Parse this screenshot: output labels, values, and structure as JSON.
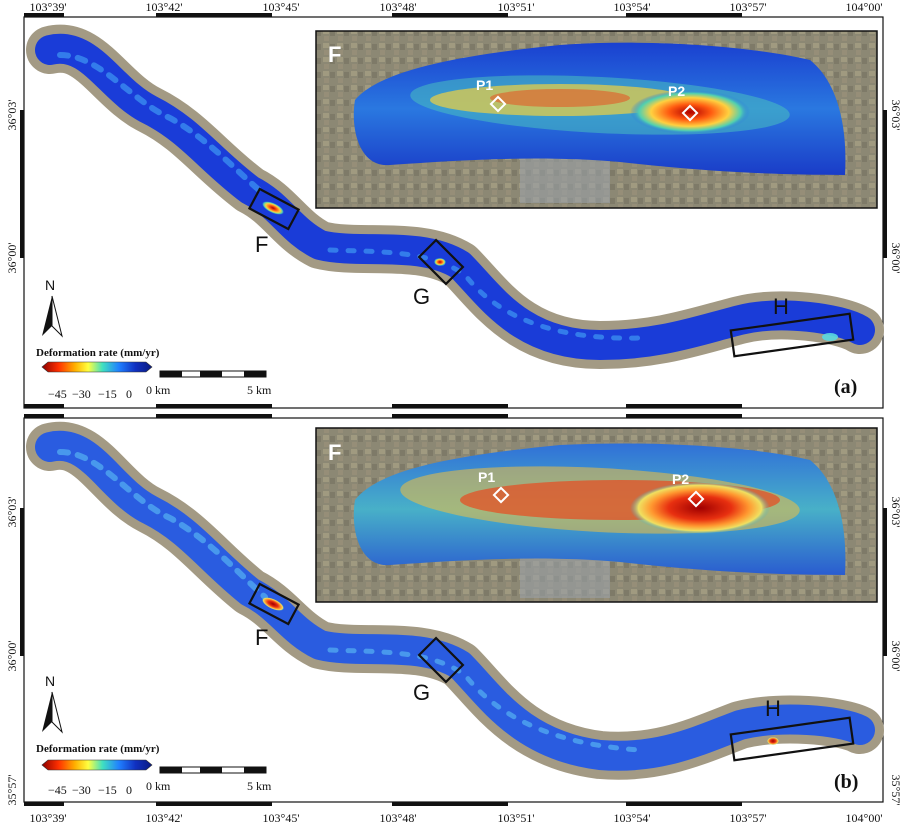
{
  "lon_ticks": [
    "103°39'",
    "103°42'",
    "103°45'",
    "103°48'",
    "103°51'",
    "103°54'",
    "103°57'",
    "104°00'"
  ],
  "panels": [
    {
      "id": "a",
      "panel_label": "(a)",
      "lat_ticks": [
        "36°03'",
        "36°00'"
      ],
      "box_labels": [
        "F",
        "G",
        "H"
      ],
      "inset": {
        "label": "F",
        "points": [
          "P1",
          "P2"
        ]
      },
      "legend": {
        "title": "Deformation rate (mm/yr)",
        "ticks": [
          "−45",
          "−30",
          "−15",
          "0"
        ]
      },
      "scale": {
        "start": "0 km",
        "end": "5 km"
      },
      "north": "N"
    },
    {
      "id": "b",
      "panel_label": "(b)",
      "lat_ticks": [
        "36°03'",
        "36°00'",
        "35°57'"
      ],
      "box_labels": [
        "F",
        "G",
        "H"
      ],
      "inset": {
        "label": "F",
        "points": [
          "P1",
          "P2"
        ]
      },
      "legend": {
        "title": "Deformation rate (mm/yr)",
        "ticks": [
          "−45",
          "−30",
          "−15",
          "0"
        ]
      },
      "scale": {
        "start": "0 km",
        "end": "5 km"
      },
      "north": "N"
    }
  ],
  "colors": {
    "colorbar": [
      "#8b0000",
      "#ff3000",
      "#ffb000",
      "#ffff40",
      "#40e0c0",
      "#2080ff",
      "#1030c0",
      "#0a1a80"
    ],
    "terrain": "#a39a84",
    "deformation_base": "#1a3cd8",
    "hotspot": "#d42a10"
  },
  "icons": [
    "north-arrow-icon",
    "scale-bar-icon",
    "diamond-marker-icon"
  ]
}
